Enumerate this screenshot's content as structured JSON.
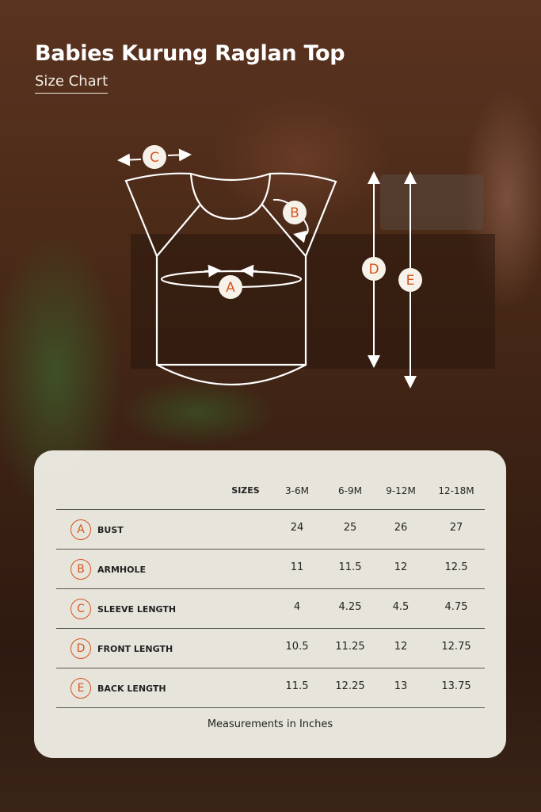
{
  "title": "Babies Kurung Raglan Top",
  "subtitle": "Size Chart",
  "colors": {
    "accent": "#d4561f",
    "card": "#eeece4",
    "text": "#222222",
    "lines": "#ffffff"
  },
  "diagram": {
    "labels": [
      "A",
      "B",
      "C",
      "D",
      "E"
    ]
  },
  "table": {
    "sizes_label": "SIZES",
    "sizes": [
      "3-6M",
      "6-9M",
      "9-12M",
      "12-18M"
    ],
    "rows": [
      {
        "key": "A",
        "label": "BUST",
        "values": [
          "24",
          "25",
          "26",
          "27"
        ]
      },
      {
        "key": "B",
        "label": "ARMHOLE",
        "values": [
          "11",
          "11.5",
          "12",
          "12.5"
        ]
      },
      {
        "key": "C",
        "label": "SLEEVE LENGTH",
        "values": [
          "4",
          "4.25",
          "4.5",
          "4.75"
        ]
      },
      {
        "key": "D",
        "label": "FRONT LENGTH",
        "values": [
          "10.5",
          "11.25",
          "12",
          "12.75"
        ]
      },
      {
        "key": "E",
        "label": "BACK LENGTH",
        "values": [
          "11.5",
          "12.25",
          "13",
          "13.75"
        ]
      }
    ],
    "footnote": "Measurements in Inches"
  }
}
